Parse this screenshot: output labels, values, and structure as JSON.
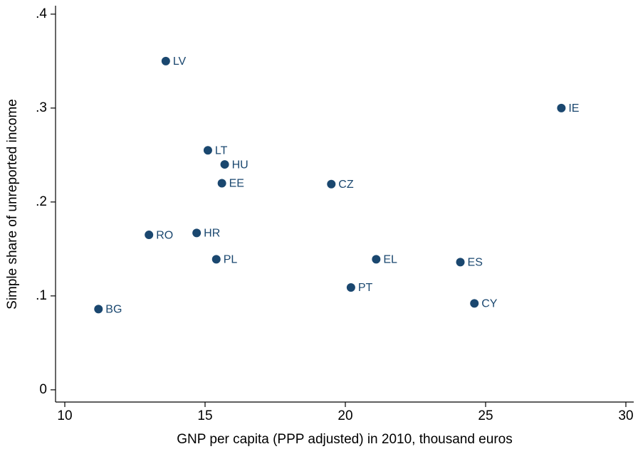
{
  "chart_data": {
    "type": "scatter",
    "x_label": "GNP per capita (PPP adjusted) in 2010, thousand euros",
    "y_label": "Simple share of unreported income",
    "labels": [
      "LV",
      "IE",
      "LT",
      "HU",
      "EE",
      "CZ",
      "RO",
      "HR",
      "PL",
      "EL",
      "ES",
      "PT",
      "CY",
      "BG"
    ],
    "x": [
      13.6,
      27.7,
      15.1,
      15.7,
      15.6,
      19.5,
      13.0,
      14.7,
      15.4,
      21.1,
      24.1,
      20.2,
      24.6,
      11.2
    ],
    "values": [
      0.35,
      0.3,
      0.255,
      0.24,
      0.22,
      0.219,
      0.165,
      0.167,
      0.139,
      0.139,
      0.136,
      0.109,
      0.092,
      0.086
    ],
    "color": "#1a476f",
    "xlim": [
      9.67,
      30.28
    ],
    "ylim": [
      -0.013,
      0.409
    ],
    "xticks": [
      10,
      15,
      20,
      25,
      30
    ],
    "yticks": [
      0,
      {
        "value": 0.1,
        "label": ".1"
      },
      {
        "value": 0.2,
        "label": ".2"
      },
      {
        "value": 0.3,
        "label": ".3"
      },
      {
        "value": 0.4,
        "label": ".4"
      }
    ],
    "grid": false
  }
}
